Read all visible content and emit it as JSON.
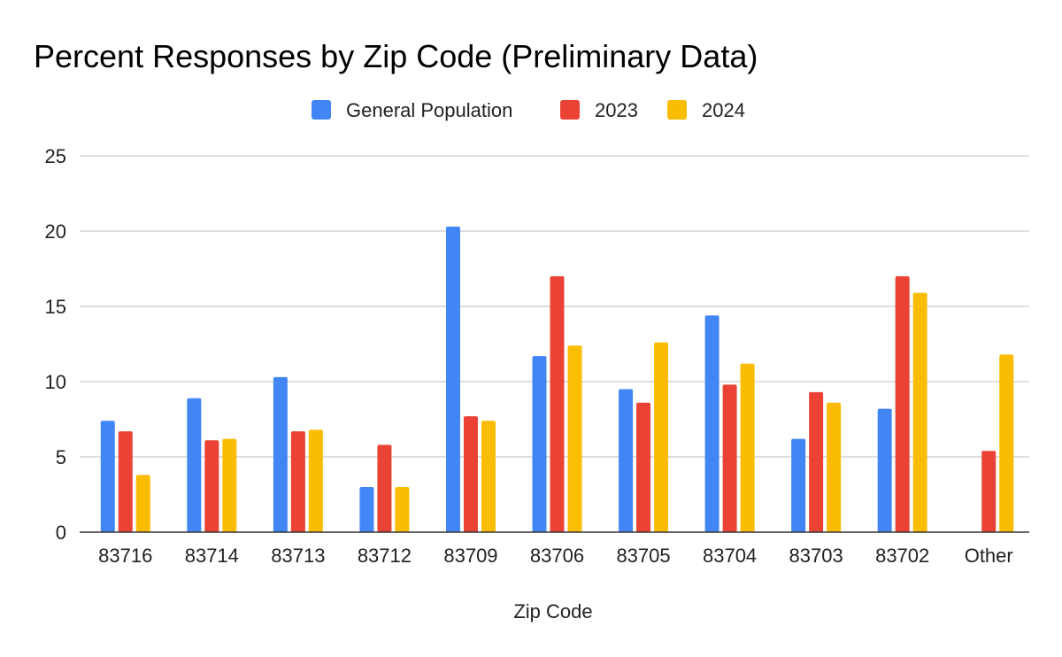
{
  "chart_data": {
    "type": "bar",
    "title": "Percent Responses by Zip Code (Preliminary Data)",
    "xlabel": "Zip Code",
    "ylabel": "",
    "ylim": [
      0,
      25
    ],
    "yticks": [
      0,
      5,
      10,
      15,
      20,
      25
    ],
    "grid": true,
    "legend_position": "top",
    "categories": [
      "83716",
      "83714",
      "83713",
      "83712",
      "83709",
      "83706",
      "83705",
      "83704",
      "83703",
      "83702",
      "Other"
    ],
    "series": [
      {
        "name": "General Population",
        "color": "#4285F4",
        "values": [
          7.4,
          8.9,
          10.3,
          3.0,
          20.3,
          11.7,
          9.5,
          14.4,
          6.2,
          8.2,
          0
        ]
      },
      {
        "name": "2023",
        "color": "#EA4335",
        "values": [
          6.7,
          6.1,
          6.7,
          5.8,
          7.7,
          17.0,
          8.6,
          9.8,
          9.3,
          17.0,
          5.4
        ]
      },
      {
        "name": "2024",
        "color": "#FBBC04",
        "values": [
          3.8,
          6.2,
          6.8,
          3.0,
          7.4,
          12.4,
          12.6,
          11.2,
          8.6,
          15.9,
          11.8
        ]
      }
    ]
  }
}
